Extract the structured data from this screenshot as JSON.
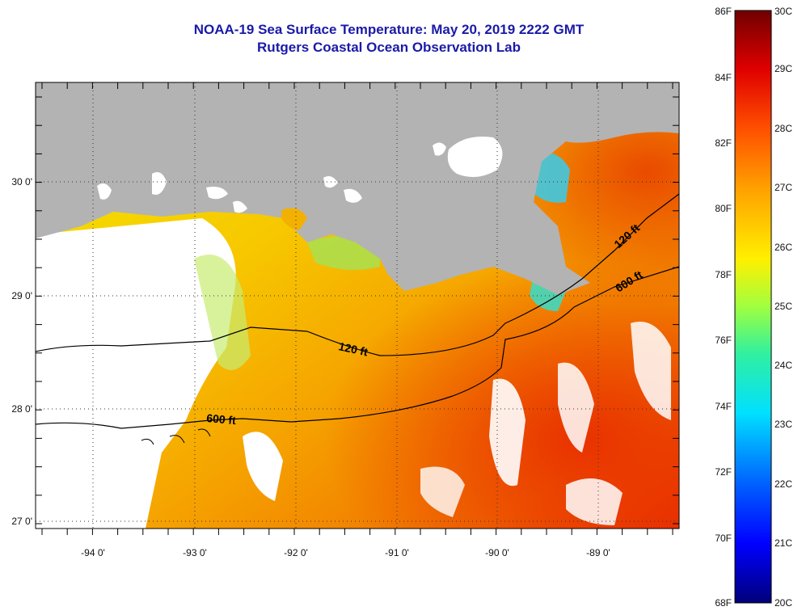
{
  "title": {
    "line1": "NOAA-19 Sea Surface Temperature:  May 20, 2019 2222 GMT",
    "line2": "Rutgers Coastal Ocean Observation Lab"
  },
  "axes": {
    "x_ticks": [
      "-94 0'",
      "-93 0'",
      "-92 0'",
      "-91 0'",
      "-90 0'",
      "-89 0'"
    ],
    "y_ticks": [
      "30 0'",
      "29 0'",
      "28 0'",
      "27 0'"
    ]
  },
  "contours": {
    "shallow_label": "120 ft",
    "deep_label": "600 ft"
  },
  "colorbar": {
    "fahrenheit": [
      "86F",
      "84F",
      "82F",
      "80F",
      "78F",
      "76F",
      "74F",
      "72F",
      "70F",
      "68F"
    ],
    "celsius": [
      "30C",
      "29C",
      "28C",
      "27C",
      "26C",
      "25C",
      "24C",
      "23C",
      "22C",
      "21C",
      "20C"
    ]
  },
  "colors": {
    "land": "#b3b3b3",
    "cloud": "#ffffff",
    "title": "#1a1aa8"
  }
}
